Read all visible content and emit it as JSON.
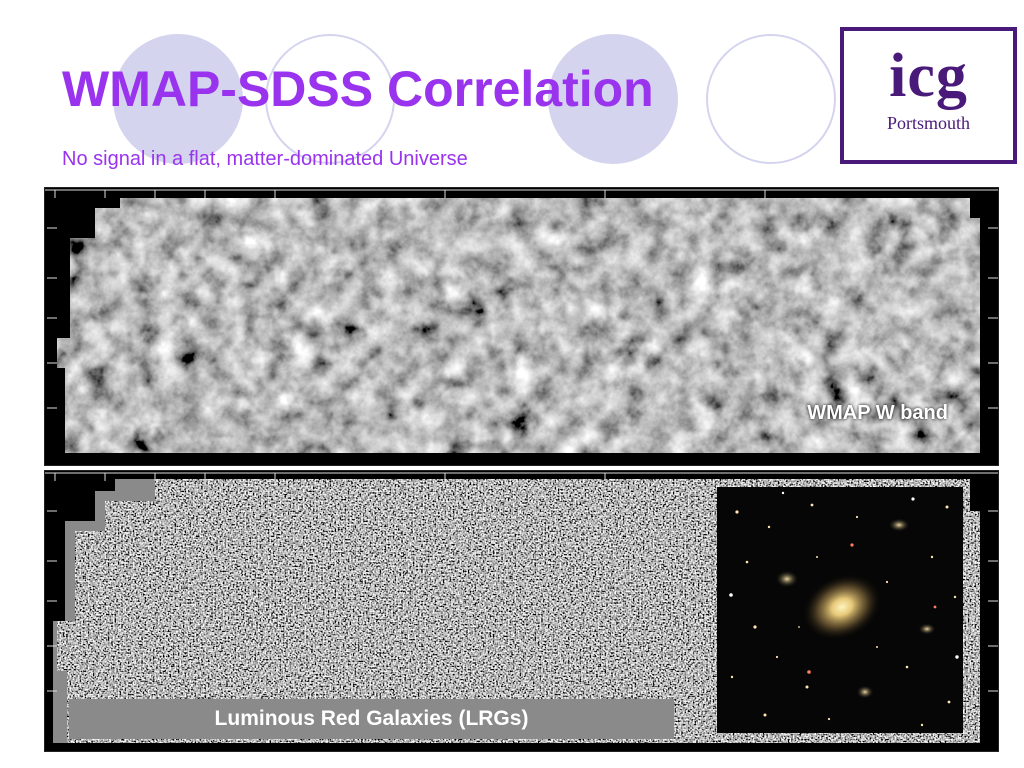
{
  "slide": {
    "title": "WMAP-SDSS Correlation",
    "subtitle": "No signal in a flat, matter-dominated Universe"
  },
  "logo": {
    "main": "icg",
    "sub": "Portsmouth",
    "color": "#4a1a7a"
  },
  "maps": {
    "wmap_label": "WMAP W band",
    "lrg_label": "Luminous Red Galaxies (LRGs)"
  },
  "colors": {
    "title": "#9933ee",
    "decor_circles": "#d4d4ef"
  }
}
